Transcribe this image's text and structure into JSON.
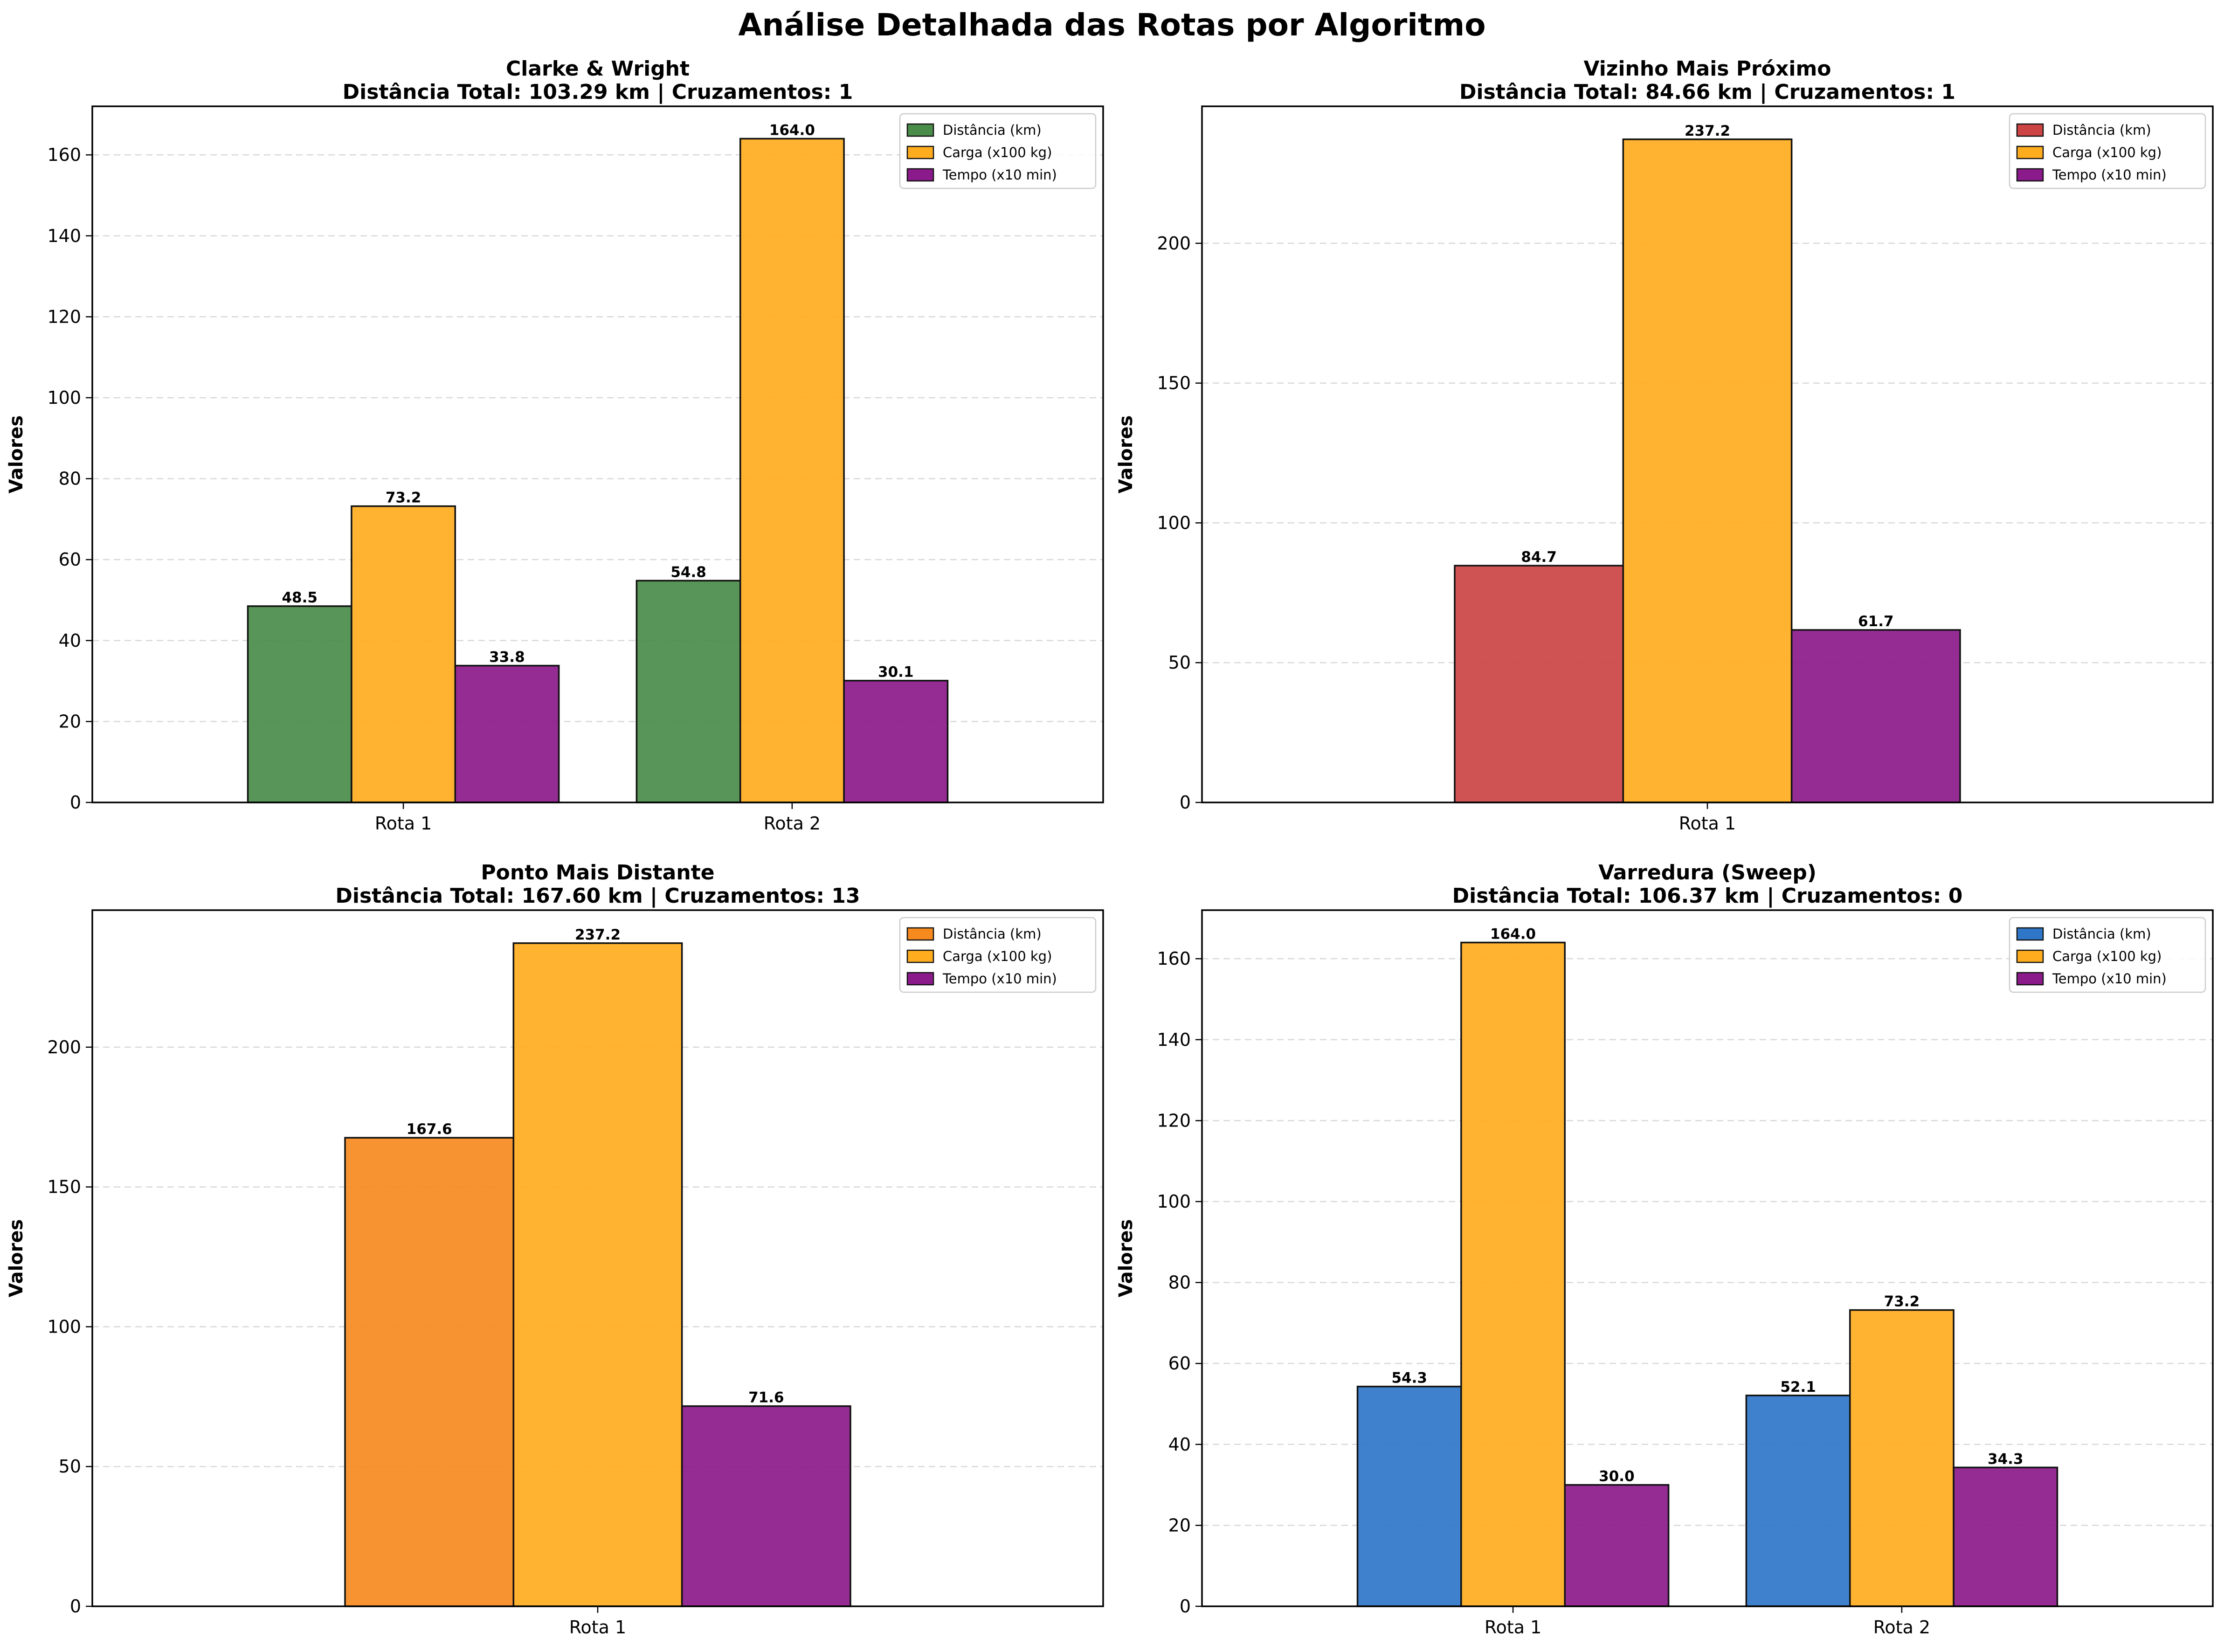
{
  "suptitle": "Análise Detalhada das Rotas por Algoritmo",
  "chart_data": [
    {
      "type": "bar",
      "title": "Clarke & Wright",
      "subtitle": "Distância Total: 103.29 km | Cruzamentos: 1",
      "ylabel": "Valores",
      "categories": [
        "Rota 1",
        "Rota 2"
      ],
      "ylim": [
        0,
        172
      ],
      "yticks": [
        0,
        20,
        40,
        60,
        80,
        100,
        120,
        140,
        160
      ],
      "grid": true,
      "legend": "top-right",
      "series": [
        {
          "name": "Distância (km)",
          "color": "#4a8c4a",
          "values": [
            48.5,
            54.8
          ]
        },
        {
          "name": "Carga (x100 kg)",
          "color": "#ffad1f",
          "values": [
            73.2,
            164.0
          ]
        },
        {
          "name": "Tempo (x10 min)",
          "color": "#8b1a8b",
          "values": [
            33.8,
            30.1
          ]
        }
      ]
    },
    {
      "type": "bar",
      "title": "Vizinho Mais Próximo",
      "subtitle": "Distância Total: 84.66 km | Cruzamentos: 1",
      "ylabel": "Valores",
      "categories": [
        "Rota 1"
      ],
      "ylim": [
        0,
        249
      ],
      "yticks": [
        0,
        50,
        100,
        150,
        200
      ],
      "grid": true,
      "legend": "top-right",
      "series": [
        {
          "name": "Distância (km)",
          "color": "#cc4444",
          "values": [
            84.7
          ]
        },
        {
          "name": "Carga (x100 kg)",
          "color": "#ffad1f",
          "values": [
            237.2
          ]
        },
        {
          "name": "Tempo (x10 min)",
          "color": "#8b1a8b",
          "values": [
            61.7
          ]
        }
      ]
    },
    {
      "type": "bar",
      "title": "Ponto Mais Distante",
      "subtitle": "Distância Total: 167.60 km | Cruzamentos: 13",
      "ylabel": "Valores",
      "categories": [
        "Rota 1"
      ],
      "ylim": [
        0,
        249
      ],
      "yticks": [
        0,
        50,
        100,
        150,
        200
      ],
      "grid": true,
      "legend": "top-right",
      "series": [
        {
          "name": "Distância (km)",
          "color": "#f68a1e",
          "values": [
            167.6
          ]
        },
        {
          "name": "Carga (x100 kg)",
          "color": "#ffad1f",
          "values": [
            237.2
          ]
        },
        {
          "name": "Tempo (x10 min)",
          "color": "#8b1a8b",
          "values": [
            71.6
          ]
        }
      ]
    },
    {
      "type": "bar",
      "title": "Varredura (Sweep)",
      "subtitle": "Distância Total: 106.37 km | Cruzamentos: 0",
      "ylabel": "Valores",
      "categories": [
        "Rota 1",
        "Rota 2"
      ],
      "ylim": [
        0,
        172
      ],
      "yticks": [
        0,
        20,
        40,
        60,
        80,
        100,
        120,
        140,
        160
      ],
      "grid": true,
      "legend": "top-right",
      "series": [
        {
          "name": "Distância (km)",
          "color": "#2f76c8",
          "values": [
            54.3,
            52.1
          ]
        },
        {
          "name": "Carga (x100 kg)",
          "color": "#ffad1f",
          "values": [
            164.0,
            73.2
          ]
        },
        {
          "name": "Tempo (x10 min)",
          "color": "#8b1a8b",
          "values": [
            30.0,
            34.3
          ]
        }
      ]
    }
  ]
}
